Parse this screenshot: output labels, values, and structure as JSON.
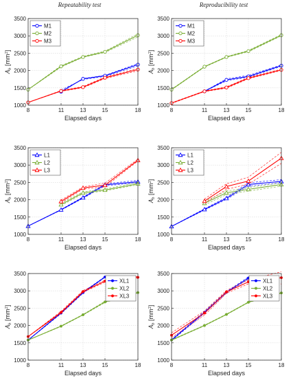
{
  "figure": {
    "col_titles": [
      "Repeatability test",
      "Reproducibility test"
    ]
  },
  "chart_data": [
    {
      "type": "line",
      "row": 0,
      "col": 0,
      "x": [
        8,
        11,
        13,
        15,
        18
      ],
      "xlabel": "Elapsed days",
      "ylabel": "A_b [mm^2]",
      "xlim": [
        8,
        18
      ],
      "ylim": [
        1000,
        3500
      ],
      "xticks": [
        8,
        11,
        13,
        15,
        18
      ],
      "yticks": [
        1000,
        1500,
        2000,
        2500,
        3000,
        3500
      ],
      "grid": true,
      "legend_position": "top-left",
      "series": [
        {
          "name": "M1",
          "color": "#0000ff",
          "marker": "circle",
          "values": [
            null,
            1390,
            1760,
            1850,
            2170
          ],
          "bands": [
            [
              null,
              1440,
              1740,
              1830,
              2130
            ],
            [
              null,
              1370,
              1770,
              1860,
              2200
            ]
          ]
        },
        {
          "name": "M2",
          "color": "#77ac30",
          "marker": "circle",
          "values": [
            1450,
            2120,
            2390,
            2540,
            3020
          ],
          "bands": [
            [
              1450,
              2100,
              2380,
              2520,
              2970
            ],
            [
              1450,
              2140,
              2410,
              2560,
              3060
            ]
          ]
        },
        {
          "name": "M3",
          "color": "#ff0000",
          "marker": "circle",
          "values": [
            1080,
            1410,
            1520,
            1790,
            2030
          ],
          "bands": [
            [
              1080,
              1400,
              1500,
              1770,
              1990
            ],
            [
              1080,
              1420,
              1540,
              1810,
              2060
            ]
          ]
        }
      ]
    },
    {
      "type": "line",
      "row": 0,
      "col": 1,
      "x": [
        8,
        11,
        13,
        15,
        18
      ],
      "xlabel": "Elapsed days",
      "ylabel": "A_b [mm^2]",
      "xlim": [
        8,
        18
      ],
      "ylim": [
        1000,
        3500
      ],
      "xticks": [
        8,
        11,
        13,
        15,
        18
      ],
      "yticks": [
        1000,
        1500,
        2000,
        2500,
        3000,
        3500
      ],
      "grid": true,
      "legend_position": "top-left",
      "series": [
        {
          "name": "M1",
          "color": "#0000ff",
          "marker": "circle",
          "values": [
            null,
            1400,
            1730,
            1830,
            2140
          ],
          "bands": [
            [
              null,
              1400,
              1700,
              1810,
              2120
            ],
            [
              null,
              1400,
              1760,
              1860,
              2160
            ]
          ]
        },
        {
          "name": "M2",
          "color": "#77ac30",
          "marker": "circle",
          "values": [
            1450,
            2110,
            2390,
            2560,
            3020
          ],
          "bands": [
            [
              1440,
              2100,
              2380,
              2540,
              3000
            ],
            [
              1460,
              2120,
              2400,
              2580,
              3040
            ]
          ]
        },
        {
          "name": "M3",
          "color": "#ff0000",
          "marker": "circle",
          "values": [
            1060,
            1400,
            1510,
            1780,
            2020
          ],
          "bands": [
            [
              1050,
              1390,
              1490,
              1760,
              2000
            ],
            [
              1070,
              1410,
              1530,
              1800,
              2040
            ]
          ]
        }
      ]
    },
    {
      "type": "line",
      "row": 1,
      "col": 0,
      "x": [
        8,
        11,
        13,
        15,
        18
      ],
      "xlabel": "Elapsed days",
      "ylabel": "A_b [mm^2]",
      "xlim": [
        8,
        18
      ],
      "ylim": [
        1000,
        3500
      ],
      "xticks": [
        8,
        11,
        13,
        15,
        18
      ],
      "yticks": [
        1000,
        1500,
        2000,
        2500,
        3000,
        3500
      ],
      "grid": true,
      "legend_position": "top-left",
      "series": [
        {
          "name": "L1",
          "color": "#0000ff",
          "marker": "triangle",
          "values": [
            1240,
            1710,
            2060,
            2430,
            2520
          ],
          "bands": [
            [
              1240,
              1700,
              2040,
              2400,
              2490
            ],
            [
              1240,
              1720,
              2080,
              2460,
              2560
            ]
          ]
        },
        {
          "name": "L2",
          "color": "#77ac30",
          "marker": "triangle",
          "values": [
            null,
            1860,
            2200,
            2280,
            2460
          ],
          "bands": [
            [
              null,
              1830,
              2170,
              2260,
              2430
            ],
            [
              null,
              1890,
              2230,
              2310,
              2500
            ]
          ]
        },
        {
          "name": "L3",
          "color": "#ff0000",
          "marker": "triangle",
          "values": [
            null,
            1950,
            2340,
            2420,
            3140
          ],
          "bands": [
            [
              null,
              1910,
              2310,
              2370,
              3120
            ],
            [
              null,
              1990,
              2370,
              2480,
              3170
            ]
          ]
        }
      ]
    },
    {
      "type": "line",
      "row": 1,
      "col": 1,
      "x": [
        8,
        11,
        13,
        15,
        18
      ],
      "xlabel": "Elapsed days",
      "ylabel": "A_b [mm^2]",
      "xlim": [
        8,
        18
      ],
      "ylim": [
        1000,
        3500
      ],
      "xticks": [
        8,
        11,
        13,
        15,
        18
      ],
      "yticks": [
        1000,
        1500,
        2000,
        2500,
        3000,
        3500
      ],
      "grid": true,
      "legend_position": "top-left",
      "series": [
        {
          "name": "L1",
          "color": "#0000ff",
          "marker": "triangle",
          "values": [
            1230,
            1720,
            2040,
            2440,
            2530
          ],
          "bands": [
            [
              1230,
              1700,
              2010,
              2390,
              2490
            ],
            [
              1230,
              1740,
              2070,
              2490,
              2580
            ]
          ]
        },
        {
          "name": "L2",
          "color": "#77ac30",
          "marker": "triangle",
          "values": [
            null,
            1900,
            2200,
            2300,
            2440
          ],
          "bands": [
            [
              null,
              1850,
              2150,
              2250,
              2390
            ],
            [
              null,
              1950,
              2250,
              2350,
              2490
            ]
          ]
        },
        {
          "name": "L3",
          "color": "#ff0000",
          "marker": "triangle",
          "values": [
            null,
            1960,
            2380,
            2540,
            3200
          ],
          "bands": [
            [
              null,
              1900,
              2300,
              2450,
              3050
            ],
            [
              null,
              2020,
              2460,
              2650,
              3370
            ]
          ]
        }
      ]
    },
    {
      "type": "line",
      "row": 2,
      "col": 0,
      "x": [
        8,
        11,
        13,
        15,
        18
      ],
      "xlabel": "Elapsed days",
      "ylabel": "A_b [mm^2]",
      "xlim": [
        8,
        18
      ],
      "ylim": [
        1000,
        3500
      ],
      "xticks": [
        8,
        11,
        13,
        15,
        18
      ],
      "yticks": [
        1000,
        1500,
        2000,
        2500,
        3000,
        3500
      ],
      "grid": true,
      "legend_position": "top-right",
      "series": [
        {
          "name": "XL1",
          "color": "#0000ff",
          "marker": "dot",
          "values": [
            1580,
            2360,
            2950,
            3400,
            null
          ],
          "bands": [
            [
              1580,
              2340,
              2930,
              3390,
              null
            ],
            [
              1580,
              2380,
              2970,
              3410,
              null
            ]
          ]
        },
        {
          "name": "XL2",
          "color": "#77ac30",
          "marker": "dot",
          "values": [
            1580,
            1980,
            2310,
            2680,
            2950
          ],
          "bands": [
            [
              1580,
              1970,
              2300,
              2660,
              2940
            ],
            [
              1580,
              1990,
              2320,
              2700,
              2960
            ]
          ]
        },
        {
          "name": "XL3",
          "color": "#ff0000",
          "marker": "dot",
          "values": [
            1680,
            2380,
            2980,
            3280,
            3390
          ],
          "bands": [
            [
              1680,
              2350,
              2960,
              3250,
              3360
            ],
            [
              1680,
              2410,
              3010,
              3310,
              3420
            ]
          ]
        }
      ]
    },
    {
      "type": "line",
      "row": 2,
      "col": 1,
      "x": [
        8,
        11,
        13,
        15,
        18
      ],
      "xlabel": "Elapsed days",
      "ylabel": "A_b [mm^2]",
      "xlim": [
        8,
        18
      ],
      "ylim": [
        1000,
        3500
      ],
      "xticks": [
        8,
        11,
        13,
        15,
        18
      ],
      "yticks": [
        1000,
        1500,
        2000,
        2500,
        3000,
        3500
      ],
      "grid": true,
      "legend_position": "top-right",
      "series": [
        {
          "name": "XL1",
          "color": "#0000ff",
          "marker": "dot",
          "values": [
            1580,
            2380,
            2960,
            3370,
            null
          ],
          "bands": [
            [
              1560,
              2350,
              2940,
              3340,
              null
            ],
            [
              1600,
              2410,
              2980,
              3400,
              null
            ]
          ]
        },
        {
          "name": "XL2",
          "color": "#77ac30",
          "marker": "dot",
          "values": [
            1580,
            2000,
            2320,
            2670,
            2940
          ],
          "bands": [
            [
              1570,
              1990,
              2310,
              2660,
              2930
            ],
            [
              1590,
              2010,
              2330,
              2680,
              2950
            ]
          ]
        },
        {
          "name": "XL3",
          "color": "#ff0000",
          "marker": "dot",
          "values": [
            1720,
            2360,
            2970,
            3260,
            3380
          ],
          "bands": [
            [
              1650,
              2300,
              2930,
              3200,
              3200
            ],
            [
              1790,
              2420,
              3010,
              3320,
              3550
            ]
          ]
        }
      ]
    }
  ]
}
